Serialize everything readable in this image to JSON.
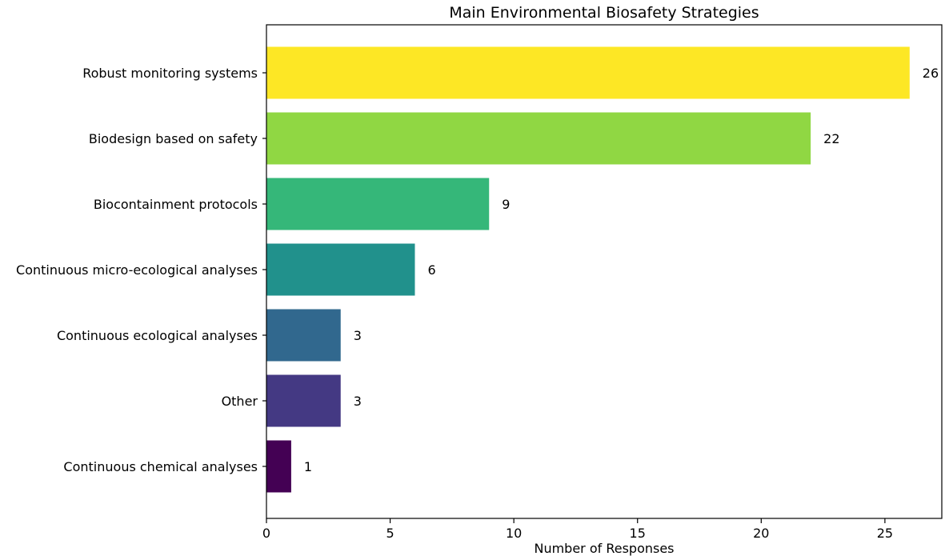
{
  "chart_data": {
    "type": "bar",
    "orientation": "horizontal",
    "title": "Main Environmental Biosafety Strategies",
    "xlabel": "Number of Responses",
    "ylabel": "",
    "xlim": [
      0,
      27.3
    ],
    "xticks": [
      0,
      5,
      10,
      15,
      20,
      25
    ],
    "grid": false,
    "categories": [
      "Robust monitoring systems",
      "Biodesign based on safety",
      "Biocontainment protocols",
      "Continuous micro-ecological analyses",
      "Continuous ecological analyses",
      "Other",
      "Continuous chemical analyses"
    ],
    "values": [
      26,
      22,
      9,
      6,
      3,
      3,
      1
    ],
    "colors": [
      "#fde725",
      "#90d743",
      "#35b779",
      "#21918c",
      "#31688e",
      "#443983",
      "#440154"
    ]
  }
}
